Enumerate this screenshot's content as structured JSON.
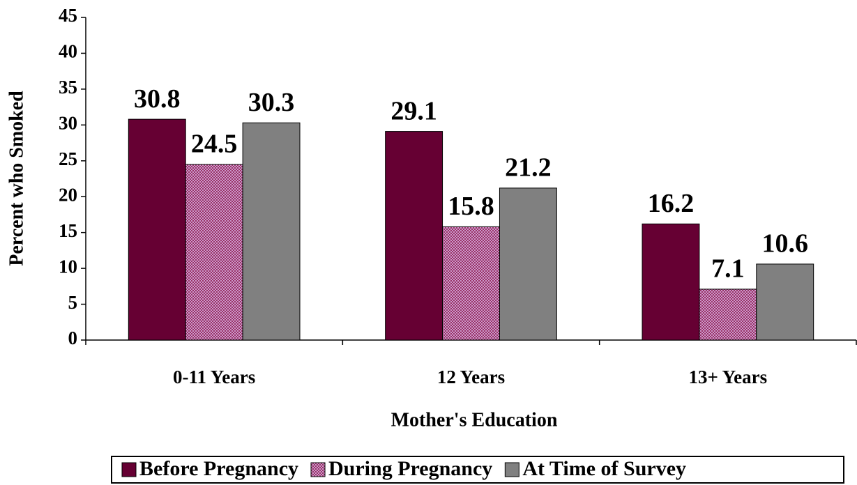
{
  "chart_data": {
    "type": "bar",
    "x_label": "Mother's Education",
    "y_label": "Percent who Smoked",
    "categories": [
      "0-11 Years",
      "12 Years",
      "13+ Years"
    ],
    "series": [
      {
        "name": "Before Pregnancy",
        "color": "#660033",
        "values": [
          30.8,
          29.1,
          16.2
        ]
      },
      {
        "name": "During Pregnancy",
        "color": "#cc99cc",
        "values": [
          24.5,
          15.8,
          7.1
        ],
        "pattern": "dots"
      },
      {
        "name": "At Time of Survey",
        "color": "#808080",
        "values": [
          30.3,
          21.2,
          10.6
        ]
      }
    ],
    "ylim": [
      0,
      45
    ],
    "yticks": [
      0,
      5,
      10,
      15,
      20,
      25,
      30,
      35,
      40,
      45
    ],
    "legend": "bottom"
  }
}
